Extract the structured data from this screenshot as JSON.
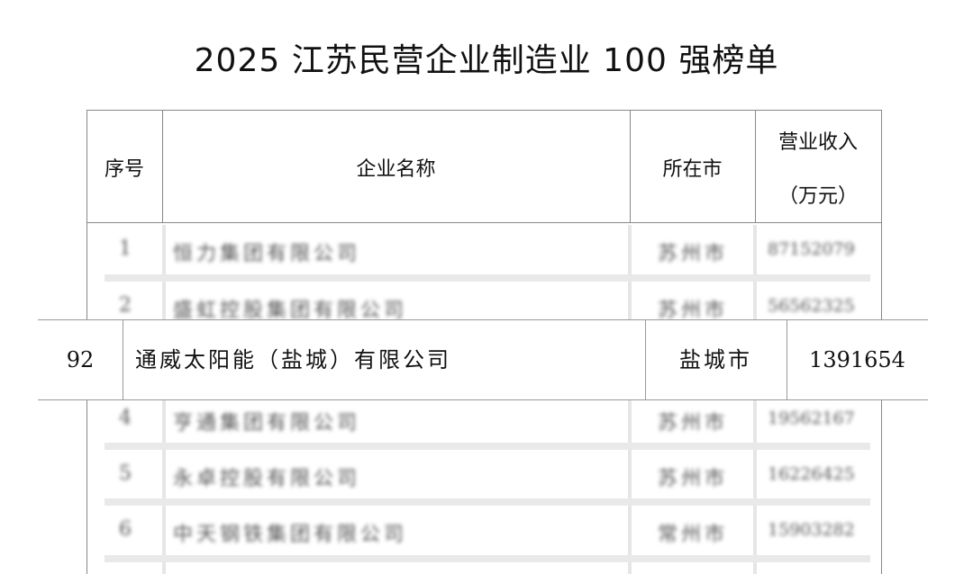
{
  "title": "2025 江苏民营企业制造业 100 强榜单",
  "headers": {
    "rank": "序号",
    "name": "企业名称",
    "city": "所在市",
    "revenue_line1": "营业收入",
    "revenue_line2": "（万元）"
  },
  "rows": [
    {
      "rank": "1",
      "name": "恒力集团有限公司",
      "city": "苏州市",
      "revenue": "87152079"
    },
    {
      "rank": "2",
      "name": "盛虹控股集团有限公司",
      "city": "苏州市",
      "revenue": "56562325"
    },
    {
      "rank": "4",
      "name": "亨通集团有限公司",
      "city": "苏州市",
      "revenue": "19562167"
    },
    {
      "rank": "5",
      "name": "永卓控股有限公司",
      "city": "苏州市",
      "revenue": "16226425"
    },
    {
      "rank": "6",
      "name": "中天钢铁集团有限公司",
      "city": "常州市",
      "revenue": "15903282"
    }
  ],
  "highlight": {
    "rank": "92",
    "name": "通威太阳能（盐城）有限公司",
    "city": "盐城市",
    "revenue": "1391654"
  }
}
